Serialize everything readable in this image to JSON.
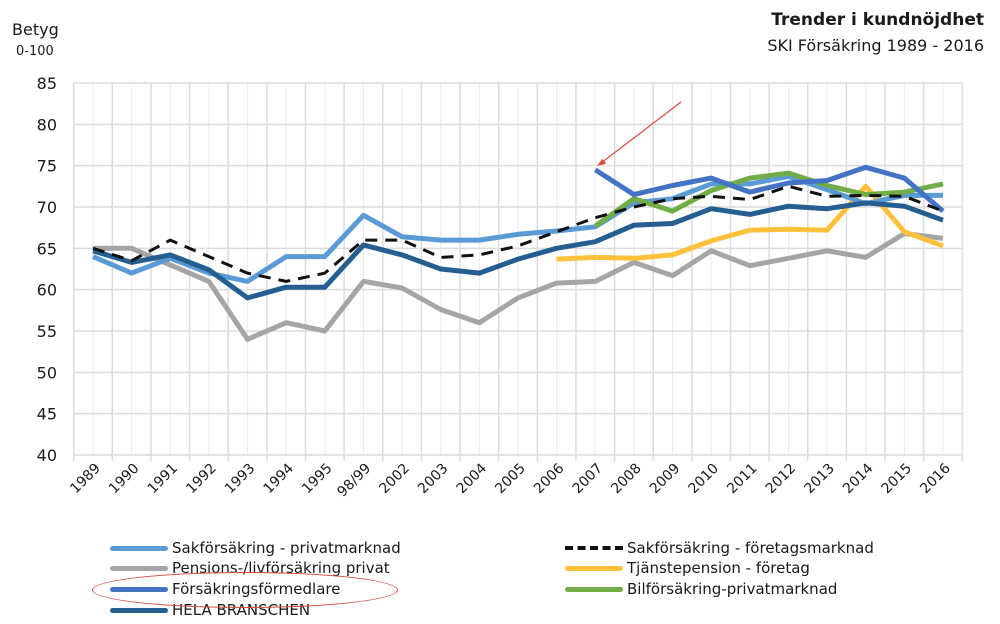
{
  "header": {
    "y_axis_title": "Betyg",
    "y_axis_subtitle": "0-100",
    "title": "Trender i kundnöjdhet",
    "subtitle": "SKI Försäkring 1989 - 2016"
  },
  "chart_data": {
    "type": "line",
    "title": "Trender i kundnöjdhet",
    "subtitle": "SKI Försäkring 1989 - 2016",
    "xlabel": "",
    "ylabel": "Betyg 0-100",
    "ylim": [
      40,
      85
    ],
    "yticks": [
      40,
      45,
      50,
      55,
      60,
      65,
      70,
      75,
      80,
      85
    ],
    "grid": true,
    "legend_position": "bottom",
    "categories": [
      "1989",
      "1990",
      "1991",
      "1992",
      "1993",
      "1994",
      "1995",
      "98/99",
      "2002",
      "2003",
      "2004",
      "2005",
      "2006",
      "2007",
      "2008",
      "2009",
      "2010",
      "2011",
      "2012",
      "2013",
      "2014",
      "2015",
      "2016"
    ],
    "series": [
      {
        "name": "Sakförsäkring - privatmarknad",
        "color": "#5b9bd5",
        "dashed": false,
        "values": [
          64,
          62,
          63.8,
          62,
          61,
          64,
          64,
          69,
          66.4,
          66,
          66,
          66.7,
          67.1,
          67.6,
          70.5,
          71,
          72.8,
          72.8,
          73.7,
          72.1,
          70.4,
          71.4,
          71.4
        ]
      },
      {
        "name": "Sakförsäkring - företagsmarknad",
        "color": "#111111",
        "dashed": true,
        "values": [
          65,
          63.5,
          66,
          64,
          62,
          61,
          62,
          66,
          66,
          63.9,
          64.2,
          65.3,
          67,
          68.7,
          70,
          71,
          71.3,
          70.9,
          72.5,
          71.3,
          71.4,
          71.3,
          69.5
        ]
      },
      {
        "name": "Pensions-/livförsäkring privat",
        "color": "#a5a5a5",
        "dashed": false,
        "values": [
          65,
          65,
          63,
          61,
          54,
          56,
          55,
          61,
          60.2,
          57.6,
          56,
          59,
          60.8,
          61,
          63.3,
          61.7,
          64.7,
          62.9,
          63.8,
          64.7,
          63.9,
          66.8,
          66.2
        ]
      },
      {
        "name": "Tjänstepension - företag",
        "color": "#ffc13b",
        "dashed": false,
        "values": [
          null,
          null,
          null,
          null,
          null,
          null,
          null,
          null,
          null,
          null,
          null,
          null,
          63.7,
          63.9,
          63.8,
          64.2,
          65.9,
          67.2,
          67.3,
          67.2,
          72.5,
          67,
          65.3
        ]
      },
      {
        "name": "Försäkringsförmedlare",
        "color": "#4472c4",
        "dashed": false,
        "values": [
          null,
          null,
          null,
          null,
          null,
          null,
          null,
          null,
          null,
          null,
          null,
          null,
          null,
          74.5,
          71.5,
          72.6,
          73.5,
          71.8,
          72.9,
          73.2,
          74.8,
          73.5,
          69.5
        ]
      },
      {
        "name": "Bilförsäkring-privatmarknad",
        "color": "#70ad47",
        "dashed": false,
        "values": [
          null,
          null,
          null,
          null,
          null,
          null,
          null,
          null,
          null,
          null,
          null,
          null,
          null,
          67.7,
          71,
          69.5,
          72,
          73.5,
          74.1,
          72.6,
          71.5,
          71.8,
          72.8
        ]
      },
      {
        "name": "HELA BRANSCHEN",
        "color": "#255e91",
        "dashed": false,
        "values": [
          64.7,
          63.3,
          64.2,
          62.4,
          59,
          60.3,
          60.3,
          65.4,
          64.2,
          62.5,
          62,
          63.7,
          65,
          65.8,
          67.8,
          68,
          69.8,
          69.1,
          70.1,
          69.8,
          70.5,
          70.1,
          68.4
        ]
      }
    ],
    "annotations": [
      {
        "type": "arrow",
        "color": "#d64a3b",
        "points_to": "Försäkringsförmedlare 2007"
      },
      {
        "type": "ellipse",
        "color": "#d64a3b",
        "highlights": "legend: Försäkringsförmedlare"
      }
    ]
  },
  "legend": {
    "left": [
      "Sakförsäkring - privatmarknad",
      "Pensions-/livförsäkring privat",
      "Försäkringsförmedlare",
      "HELA BRANSCHEN"
    ],
    "right": [
      "Sakförsäkring - företagsmarknad",
      "Tjänstepension - företag",
      "Bilförsäkring-privatmarknad"
    ]
  }
}
